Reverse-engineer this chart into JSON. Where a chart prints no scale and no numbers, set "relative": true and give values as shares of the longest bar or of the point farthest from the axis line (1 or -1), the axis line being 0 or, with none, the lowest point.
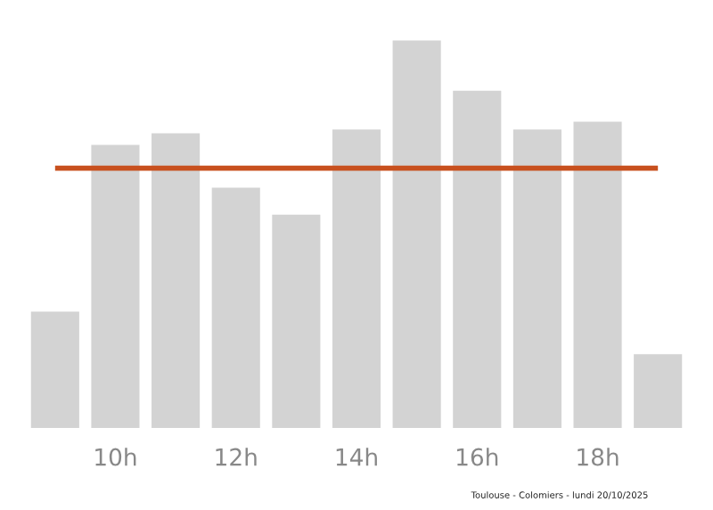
{
  "chart_data": {
    "type": "bar",
    "relative": true,
    "categories": [
      null,
      "10h",
      null,
      "12h",
      null,
      "14h",
      null,
      "16h",
      null,
      "18h",
      null
    ],
    "values": [
      0.3,
      0.73,
      0.76,
      0.62,
      0.55,
      0.77,
      1,
      0.87,
      0.77,
      0.79,
      0.19
    ],
    "color": "#d3d3d3",
    "ref_lines": [
      {
        "axis": "y",
        "value": 0.67,
        "color": "#c8501e"
      }
    ],
    "annotations": [
      "Toulouse - Colomiers - lundi 20/10/2025"
    ],
    "grid": false,
    "legend": false
  }
}
